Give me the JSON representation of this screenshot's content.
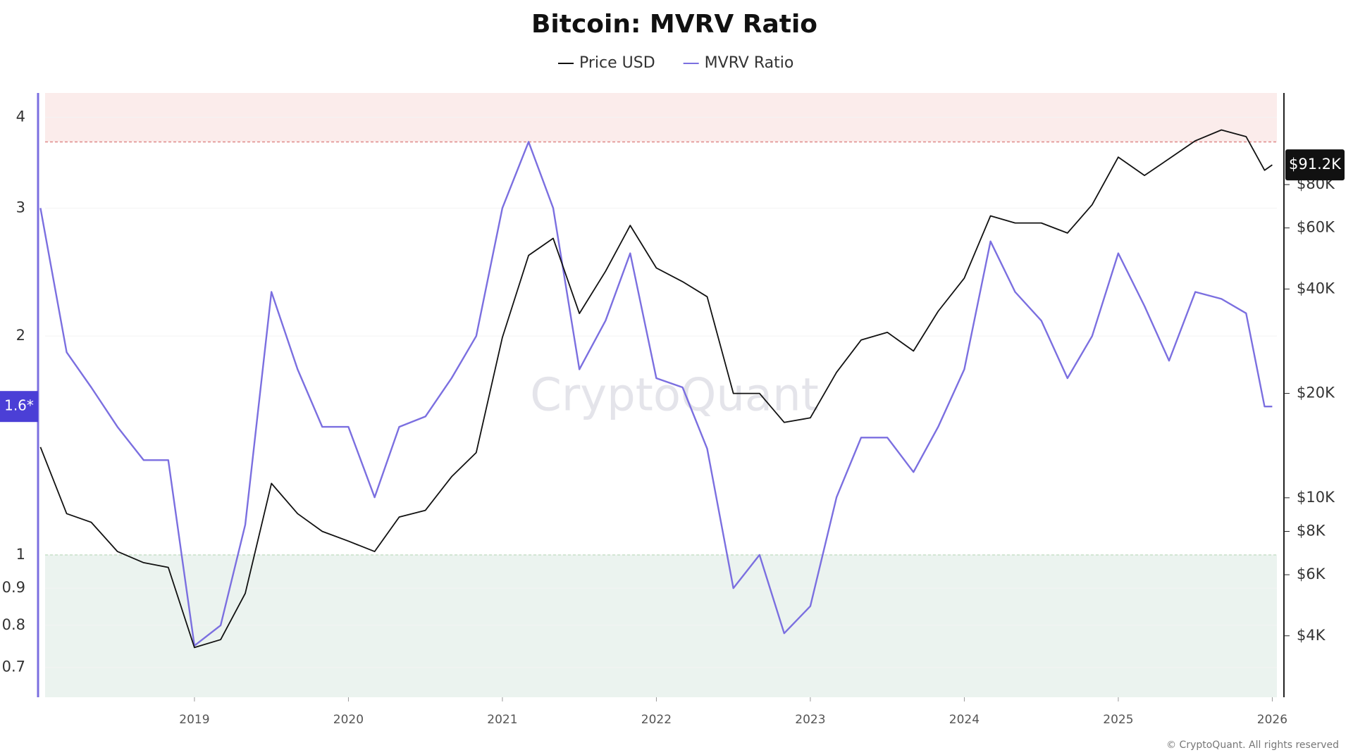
{
  "chart_data": {
    "type": "line",
    "title": "Bitcoin: MVRV Ratio",
    "watermark": "CryptoQuant",
    "footer": "© CryptoQuant. All rights reserved",
    "log_scale": true,
    "x": [
      2018.0,
      2018.17,
      2018.33,
      2018.5,
      2018.67,
      2018.83,
      2019.0,
      2019.17,
      2019.33,
      2019.5,
      2019.67,
      2019.83,
      2020.0,
      2020.17,
      2020.33,
      2020.5,
      2020.67,
      2020.83,
      2021.0,
      2021.17,
      2021.33,
      2021.5,
      2021.67,
      2021.83,
      2022.0,
      2022.17,
      2022.33,
      2022.5,
      2022.67,
      2022.83,
      2023.0,
      2023.17,
      2023.33,
      2023.5,
      2023.67,
      2023.83,
      2024.0,
      2024.17,
      2024.33,
      2024.5,
      2024.67,
      2024.83,
      2025.0,
      2025.17,
      2025.33,
      2025.5,
      2025.67,
      2025.83,
      2025.95,
      2026.0
    ],
    "xlim": [
      2018.03,
      2026.03
    ],
    "xticks": [
      2019,
      2020,
      2021,
      2022,
      2023,
      2024,
      2025,
      2026
    ],
    "series": [
      {
        "name": "Price USD",
        "color": "#111111",
        "axis": "y2",
        "values": [
          14000,
          9000,
          8500,
          7000,
          6500,
          6300,
          3700,
          3900,
          5300,
          11000,
          9000,
          8000,
          7500,
          7000,
          8800,
          9200,
          11500,
          13500,
          29000,
          50000,
          56000,
          34000,
          45000,
          61000,
          46000,
          42000,
          38000,
          20000,
          20000,
          16500,
          17000,
          23000,
          28500,
          30000,
          26500,
          34500,
          43000,
          65000,
          62000,
          62000,
          58000,
          70000,
          96000,
          85000,
          95000,
          107000,
          115000,
          110000,
          88000,
          91200
        ]
      },
      {
        "name": "MVRV Ratio",
        "color": "#7b6fe0",
        "axis": "y",
        "values": [
          3.0,
          1.9,
          1.7,
          1.5,
          1.35,
          1.35,
          0.75,
          0.8,
          1.1,
          2.3,
          1.8,
          1.5,
          1.5,
          1.2,
          1.5,
          1.55,
          1.75,
          2.0,
          3.0,
          3.7,
          3.0,
          1.8,
          2.1,
          2.6,
          1.75,
          1.7,
          1.4,
          0.9,
          1.0,
          0.78,
          0.85,
          1.2,
          1.45,
          1.45,
          1.3,
          1.5,
          1.8,
          2.7,
          2.3,
          2.1,
          1.75,
          2.0,
          2.6,
          2.2,
          1.85,
          2.3,
          2.25,
          2.15,
          1.6,
          1.6
        ]
      }
    ],
    "ylim": [
      0.637,
      4.32
    ],
    "yticks": [
      0.7,
      0.8,
      0.9,
      1,
      2,
      3,
      4
    ],
    "y2lim": [
      2660,
      147000
    ],
    "y2ticks": [
      {
        "value": 4000,
        "label": "$4K"
      },
      {
        "value": 6000,
        "label": "$6K"
      },
      {
        "value": 8000,
        "label": "$8K"
      },
      {
        "value": 10000,
        "label": "$10K"
      },
      {
        "value": 20000,
        "label": "$20K"
      },
      {
        "value": 40000,
        "label": "$40K"
      },
      {
        "value": 60000,
        "label": "$60K"
      },
      {
        "value": 80000,
        "label": "$80K"
      }
    ],
    "upper_band": 3.7,
    "lower_band": 1,
    "current_labels": [
      {
        "value": 1.6,
        "label": "1.6*"
      },
      {
        "value": 91200,
        "label": "$91.2K"
      }
    ]
  }
}
